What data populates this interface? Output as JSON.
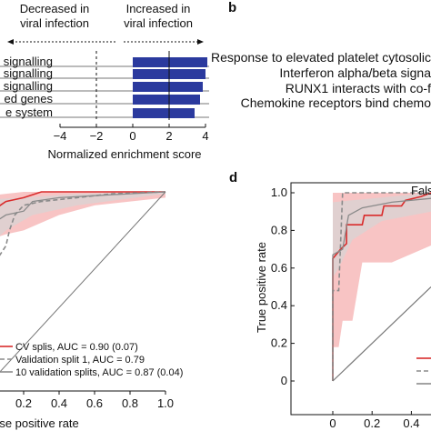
{
  "panels": {
    "b_label": "b",
    "d_label": "d"
  },
  "pathway_list": [
    "Response to elevated platelet cytosolic",
    "Interferon alpha/beta signa",
    "RUNX1 interacts with co-f",
    "Chemokine receptors bind chemo"
  ],
  "colors": {
    "bar": "#2b3a9e",
    "cv_line": "#d92b2b",
    "cv_band": "#f6b5b5",
    "val_split_line": "#8a8a8a",
    "ten_split_line": "#8a8a8a",
    "ten_split_band": "#d6d6d6"
  },
  "chart_data": [
    {
      "type": "bar",
      "orientation": "horizontal",
      "header_left": "Decreased in viral infection",
      "header_right": "Increased in viral infection",
      "categories": [
        "signalling",
        "signalling",
        "signalling",
        "ed genes",
        "e system"
      ],
      "values": [
        4.1,
        4.0,
        3.85,
        3.7,
        3.4
      ],
      "xlabel": "Normalized enrichment score",
      "xlim": [
        -4,
        4
      ],
      "xticks": [
        "−4",
        "−2",
        "0",
        "2",
        "4"
      ],
      "reference_lines": [
        -2,
        2
      ]
    },
    {
      "type": "line",
      "xlabel": "alse positive rate",
      "xticks": [
        "0.2",
        "0.4",
        "0.6",
        "0.8",
        "1.0"
      ],
      "xlim": [
        0,
        1
      ],
      "ylim": [
        0,
        1
      ],
      "series": [
        {
          "name": "CV splis, AUC = 0.90 (0.07)",
          "style": "solid-red",
          "x": [
            0,
            0.02,
            0.1,
            0.2,
            0.3,
            0.5,
            0.7,
            0.85,
            1.0
          ],
          "y": [
            0.85,
            0.9,
            0.95,
            0.97,
            1.0,
            1.0,
            1.0,
            1.0,
            1.0
          ]
        },
        {
          "name": "Validation split 1, AUC = 0.79",
          "style": "dashed-gray",
          "x": [
            0,
            0.05,
            0.1,
            0.12,
            0.15,
            0.2,
            0.3,
            0.5,
            0.7,
            1.0
          ],
          "y": [
            0.62,
            0.65,
            0.72,
            0.8,
            0.88,
            0.93,
            0.95,
            0.97,
            0.99,
            1.0
          ]
        },
        {
          "name": "10 validation splits, AUC = 0.87 (0.04)",
          "style": "solid-gray",
          "x": [
            0,
            0.05,
            0.1,
            0.2,
            0.25,
            0.4,
            0.6,
            0.8,
            1.0
          ],
          "y": [
            0.8,
            0.85,
            0.88,
            0.9,
            0.95,
            0.97,
            0.98,
            0.99,
            1.0
          ]
        },
        {
          "name": "",
          "style": "diagonal",
          "x": [
            0,
            1
          ],
          "y": [
            0,
            1
          ]
        }
      ]
    },
    {
      "type": "line",
      "xlabel": "False",
      "ylabel": "True positive rate",
      "xticks": [
        "0",
        "0.2",
        "0.4"
      ],
      "yticks": [
        "0",
        "0.2",
        "0.4",
        "0.6",
        "0.8",
        "1.0"
      ],
      "xlim": [
        0,
        0.5
      ],
      "ylim": [
        0,
        1
      ],
      "series": [
        {
          "name": "",
          "style": "solid-red",
          "x": [
            0,
            0.0,
            0.04,
            0.07,
            0.07,
            0.15,
            0.16,
            0.25,
            0.26,
            0.35,
            0.37,
            0.45,
            0.5
          ],
          "y": [
            0,
            0.65,
            0.7,
            0.73,
            0.83,
            0.83,
            0.88,
            0.88,
            0.93,
            0.93,
            0.96,
            0.98,
            1.0
          ]
        },
        {
          "name": "",
          "style": "dashed-gray",
          "x": [
            0,
            0.0,
            0.03,
            0.05,
            0.07,
            0.5
          ],
          "y": [
            0,
            0.48,
            0.48,
            1.0,
            1.0,
            1.0
          ]
        },
        {
          "name": "",
          "style": "solid-gray",
          "x": [
            0,
            0.0,
            0.05,
            0.08,
            0.15,
            0.3,
            0.5
          ],
          "y": [
            0,
            0.67,
            0.7,
            0.88,
            0.92,
            0.95,
            0.97
          ]
        },
        {
          "name": "",
          "style": "diagonal",
          "x": [
            0,
            0.5
          ],
          "y": [
            0,
            0.5
          ]
        }
      ]
    }
  ]
}
